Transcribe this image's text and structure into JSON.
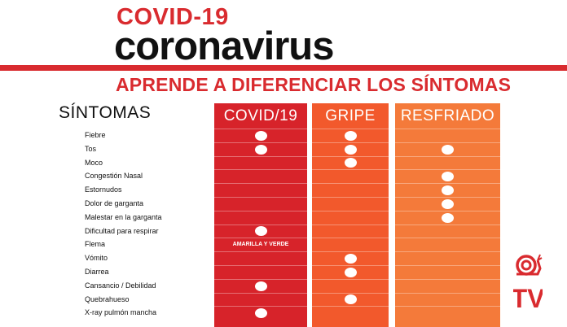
{
  "header": {
    "title_line1": "COVID-19",
    "title_line2": "coronavirus",
    "subtitle": "APRENDE A DIFERENCIAR LOS SÍNTOMAS"
  },
  "table": {
    "symptom_header": "SÍNTOMAS",
    "columns": [
      {
        "key": "covid",
        "label": "COVID/19",
        "color": "#d7232a"
      },
      {
        "key": "gripe",
        "label": "GRIPE",
        "color": "#f2592c"
      },
      {
        "key": "resf",
        "label": "RESFRIADO",
        "color": "#f47a3a"
      }
    ],
    "rows": [
      {
        "symptom": "Fiebre",
        "covid": true,
        "gripe": true,
        "resf": false
      },
      {
        "symptom": "Tos",
        "covid": true,
        "gripe": true,
        "resf": true
      },
      {
        "symptom": "Moco",
        "covid": false,
        "gripe": true,
        "resf": false
      },
      {
        "symptom": "Congestión Nasal",
        "covid": false,
        "gripe": false,
        "resf": true
      },
      {
        "symptom": "Estornudos",
        "covid": false,
        "gripe": false,
        "resf": true
      },
      {
        "symptom": "Dolor de garganta",
        "covid": false,
        "gripe": false,
        "resf": true
      },
      {
        "symptom": "Malestar en la garganta",
        "covid": false,
        "gripe": false,
        "resf": true
      },
      {
        "symptom": "Dificultad para respirar",
        "covid": true,
        "gripe": false,
        "resf": false
      },
      {
        "symptom": "Flema",
        "covid": "AMARILLA Y VERDE",
        "gripe": false,
        "resf": false
      },
      {
        "symptom": "Vómito",
        "covid": false,
        "gripe": true,
        "resf": false
      },
      {
        "symptom": "Diarrea",
        "covid": false,
        "gripe": true,
        "resf": false
      },
      {
        "symptom": "Cansancio / Debilidad",
        "covid": true,
        "gripe": false,
        "resf": false
      },
      {
        "symptom": "Quebrahueso",
        "covid": false,
        "gripe": true,
        "resf": false
      },
      {
        "symptom": "X-ray pulmón mancha",
        "covid": true,
        "gripe": false,
        "resf": false
      }
    ]
  },
  "logo": {
    "text": "TV",
    "color": "#d92b2f"
  }
}
